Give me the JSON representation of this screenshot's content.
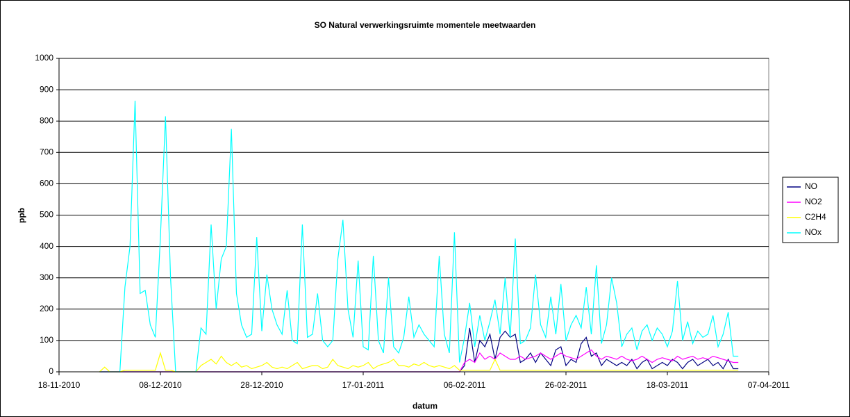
{
  "chart_data": {
    "type": "line",
    "title": "SO Natural verwerkingsruimte momentele meetwaarden",
    "x_label": "datum",
    "y_label": "ppb",
    "xlim": [
      "18-11-2010",
      "07-04-2011"
    ],
    "xticks": [
      "18-11-2010",
      "08-12-2010",
      "28-12-2010",
      "17-01-2011",
      "06-02-2011",
      "26-02-2011",
      "18-03-2011",
      "07-04-2011"
    ],
    "ylim": [
      0,
      1000
    ],
    "yticks": [
      0,
      100,
      200,
      300,
      400,
      500,
      600,
      700,
      800,
      900,
      1000
    ],
    "grid": true,
    "legend": "right",
    "x": [
      "26-11-2010",
      "27-11-2010",
      "28-11-2010",
      "29-11-2010",
      "30-11-2010",
      "01-12-2010",
      "02-12-2010",
      "03-12-2010",
      "04-12-2010",
      "05-12-2010",
      "06-12-2010",
      "07-12-2010",
      "08-12-2010",
      "09-12-2010",
      "10-12-2010",
      "11-12-2010",
      "12-12-2010",
      "13-12-2010",
      "14-12-2010",
      "15-12-2010",
      "16-12-2010",
      "17-12-2010",
      "18-12-2010",
      "19-12-2010",
      "20-12-2010",
      "21-12-2010",
      "22-12-2010",
      "23-12-2010",
      "24-12-2010",
      "25-12-2010",
      "26-12-2010",
      "27-12-2010",
      "28-12-2010",
      "29-12-2010",
      "30-12-2010",
      "31-12-2010",
      "01-01-2011",
      "02-01-2011",
      "03-01-2011",
      "04-01-2011",
      "05-01-2011",
      "06-01-2011",
      "07-01-2011",
      "08-01-2011",
      "09-01-2011",
      "10-01-2011",
      "11-01-2011",
      "12-01-2011",
      "13-01-2011",
      "14-01-2011",
      "15-01-2011",
      "16-01-2011",
      "17-01-2011",
      "18-01-2011",
      "19-01-2011",
      "20-01-2011",
      "21-01-2011",
      "22-01-2011",
      "23-01-2011",
      "24-01-2011",
      "25-01-2011",
      "26-01-2011",
      "27-01-2011",
      "28-01-2011",
      "29-01-2011",
      "30-01-2011",
      "31-01-2011",
      "01-02-2011",
      "02-02-2011",
      "03-02-2011",
      "04-02-2011",
      "05-02-2011",
      "06-02-2011",
      "07-02-2011",
      "08-02-2011",
      "09-02-2011",
      "10-02-2011",
      "11-02-2011",
      "12-02-2011",
      "13-02-2011",
      "14-02-2011",
      "15-02-2011",
      "16-02-2011",
      "17-02-2011",
      "18-02-2011",
      "19-02-2011",
      "20-02-2011",
      "21-02-2011",
      "22-02-2011",
      "23-02-2011",
      "24-02-2011",
      "25-02-2011",
      "26-02-2011",
      "27-02-2011",
      "28-02-2011",
      "01-03-2011",
      "02-03-2011",
      "03-03-2011",
      "04-03-2011",
      "05-03-2011",
      "06-03-2011",
      "07-03-2011",
      "08-03-2011",
      "09-03-2011",
      "10-03-2011",
      "11-03-2011",
      "12-03-2011",
      "13-03-2011",
      "14-03-2011",
      "15-03-2011",
      "16-03-2011",
      "17-03-2011",
      "18-03-2011",
      "19-03-2011",
      "20-03-2011",
      "21-03-2011",
      "22-03-2011",
      "23-03-2011",
      "24-03-2011",
      "25-03-2011",
      "26-03-2011",
      "27-03-2011",
      "28-03-2011",
      "29-03-2011",
      "30-03-2011",
      "31-03-2011",
      "01-04-2011"
    ],
    "series": [
      {
        "name": "NO",
        "color": "#000080",
        "values": [
          0,
          0,
          0,
          0,
          0,
          0,
          0,
          0,
          0,
          0,
          0,
          0,
          0,
          0,
          0,
          0,
          0,
          0,
          0,
          0,
          0,
          0,
          0,
          0,
          0,
          0,
          0,
          0,
          0,
          0,
          0,
          0,
          0,
          0,
          0,
          0,
          0,
          0,
          0,
          0,
          0,
          0,
          0,
          0,
          0,
          0,
          0,
          0,
          0,
          0,
          0,
          0,
          0,
          0,
          0,
          0,
          0,
          0,
          0,
          0,
          0,
          0,
          0,
          0,
          0,
          0,
          0,
          0,
          0,
          0,
          0,
          0,
          20,
          140,
          30,
          100,
          80,
          120,
          40,
          110,
          130,
          110,
          120,
          30,
          40,
          60,
          30,
          60,
          40,
          20,
          70,
          80,
          20,
          40,
          30,
          90,
          110,
          50,
          60,
          20,
          40,
          30,
          20,
          30,
          20,
          40,
          10,
          30,
          40,
          10,
          20,
          30,
          20,
          40,
          30,
          10,
          30,
          40,
          20,
          30,
          40,
          20,
          30,
          10,
          40,
          10,
          10
        ]
      },
      {
        "name": "NO2",
        "color": "#ff00ff",
        "values": [
          0,
          0,
          0,
          0,
          0,
          0,
          0,
          0,
          0,
          0,
          0,
          0,
          0,
          0,
          0,
          0,
          0,
          0,
          0,
          0,
          0,
          0,
          0,
          0,
          0,
          0,
          0,
          0,
          0,
          0,
          0,
          0,
          0,
          0,
          0,
          0,
          0,
          0,
          0,
          0,
          0,
          0,
          0,
          0,
          0,
          0,
          0,
          0,
          0,
          0,
          0,
          0,
          0,
          0,
          0,
          0,
          0,
          0,
          0,
          0,
          0,
          0,
          0,
          0,
          0,
          0,
          0,
          0,
          0,
          0,
          0,
          0,
          30,
          40,
          30,
          60,
          40,
          50,
          40,
          60,
          50,
          40,
          40,
          50,
          40,
          45,
          50,
          60,
          50,
          40,
          50,
          60,
          50,
          45,
          40,
          50,
          60,
          70,
          50,
          40,
          50,
          45,
          40,
          50,
          40,
          35,
          40,
          50,
          40,
          30,
          40,
          45,
          40,
          35,
          50,
          40,
          45,
          50,
          40,
          45,
          40,
          50,
          45,
          40,
          35,
          30,
          30
        ]
      },
      {
        "name": "C2H4",
        "color": "#ffff00",
        "values": [
          0,
          15,
          0,
          0,
          0,
          5,
          5,
          5,
          5,
          5,
          5,
          5,
          60,
          5,
          5,
          0,
          0,
          0,
          0,
          0,
          20,
          30,
          40,
          25,
          50,
          30,
          20,
          30,
          15,
          20,
          10,
          15,
          20,
          30,
          15,
          10,
          15,
          10,
          20,
          30,
          10,
          15,
          20,
          20,
          10,
          15,
          40,
          20,
          15,
          10,
          20,
          15,
          20,
          30,
          10,
          20,
          25,
          30,
          40,
          20,
          20,
          15,
          25,
          20,
          30,
          20,
          15,
          20,
          15,
          10,
          20,
          5,
          5,
          5,
          5,
          5,
          5,
          5,
          40,
          5,
          5,
          5,
          5,
          5,
          5,
          5,
          5,
          5,
          5,
          5,
          5,
          5,
          5,
          5,
          5,
          5,
          5,
          5,
          5,
          5,
          5,
          5,
          5,
          5,
          5,
          5,
          5,
          5,
          5,
          5,
          5,
          5,
          5,
          5,
          5,
          5,
          5,
          5,
          5,
          5,
          5,
          5,
          5,
          5,
          5,
          5,
          5
        ]
      },
      {
        "name": "NOx",
        "color": "#00ffff",
        "values": [
          0,
          0,
          0,
          0,
          0,
          270,
          400,
          865,
          250,
          260,
          150,
          110,
          430,
          815,
          300,
          0,
          0,
          0,
          0,
          0,
          140,
          120,
          470,
          200,
          360,
          400,
          775,
          250,
          150,
          110,
          120,
          430,
          130,
          310,
          200,
          150,
          120,
          260,
          100,
          90,
          470,
          110,
          120,
          250,
          100,
          80,
          100,
          360,
          485,
          200,
          110,
          355,
          80,
          70,
          370,
          100,
          60,
          300,
          80,
          60,
          110,
          240,
          110,
          150,
          120,
          100,
          80,
          370,
          120,
          60,
          445,
          30,
          110,
          220,
          80,
          180,
          100,
          160,
          230,
          120,
          300,
          110,
          425,
          90,
          100,
          140,
          310,
          150,
          110,
          240,
          120,
          280,
          100,
          150,
          180,
          140,
          270,
          120,
          340,
          90,
          150,
          300,
          220,
          80,
          120,
          140,
          70,
          130,
          150,
          100,
          140,
          120,
          80,
          130,
          290,
          100,
          160,
          90,
          130,
          110,
          120,
          180,
          80,
          120,
          190,
          50,
          50
        ]
      }
    ]
  }
}
